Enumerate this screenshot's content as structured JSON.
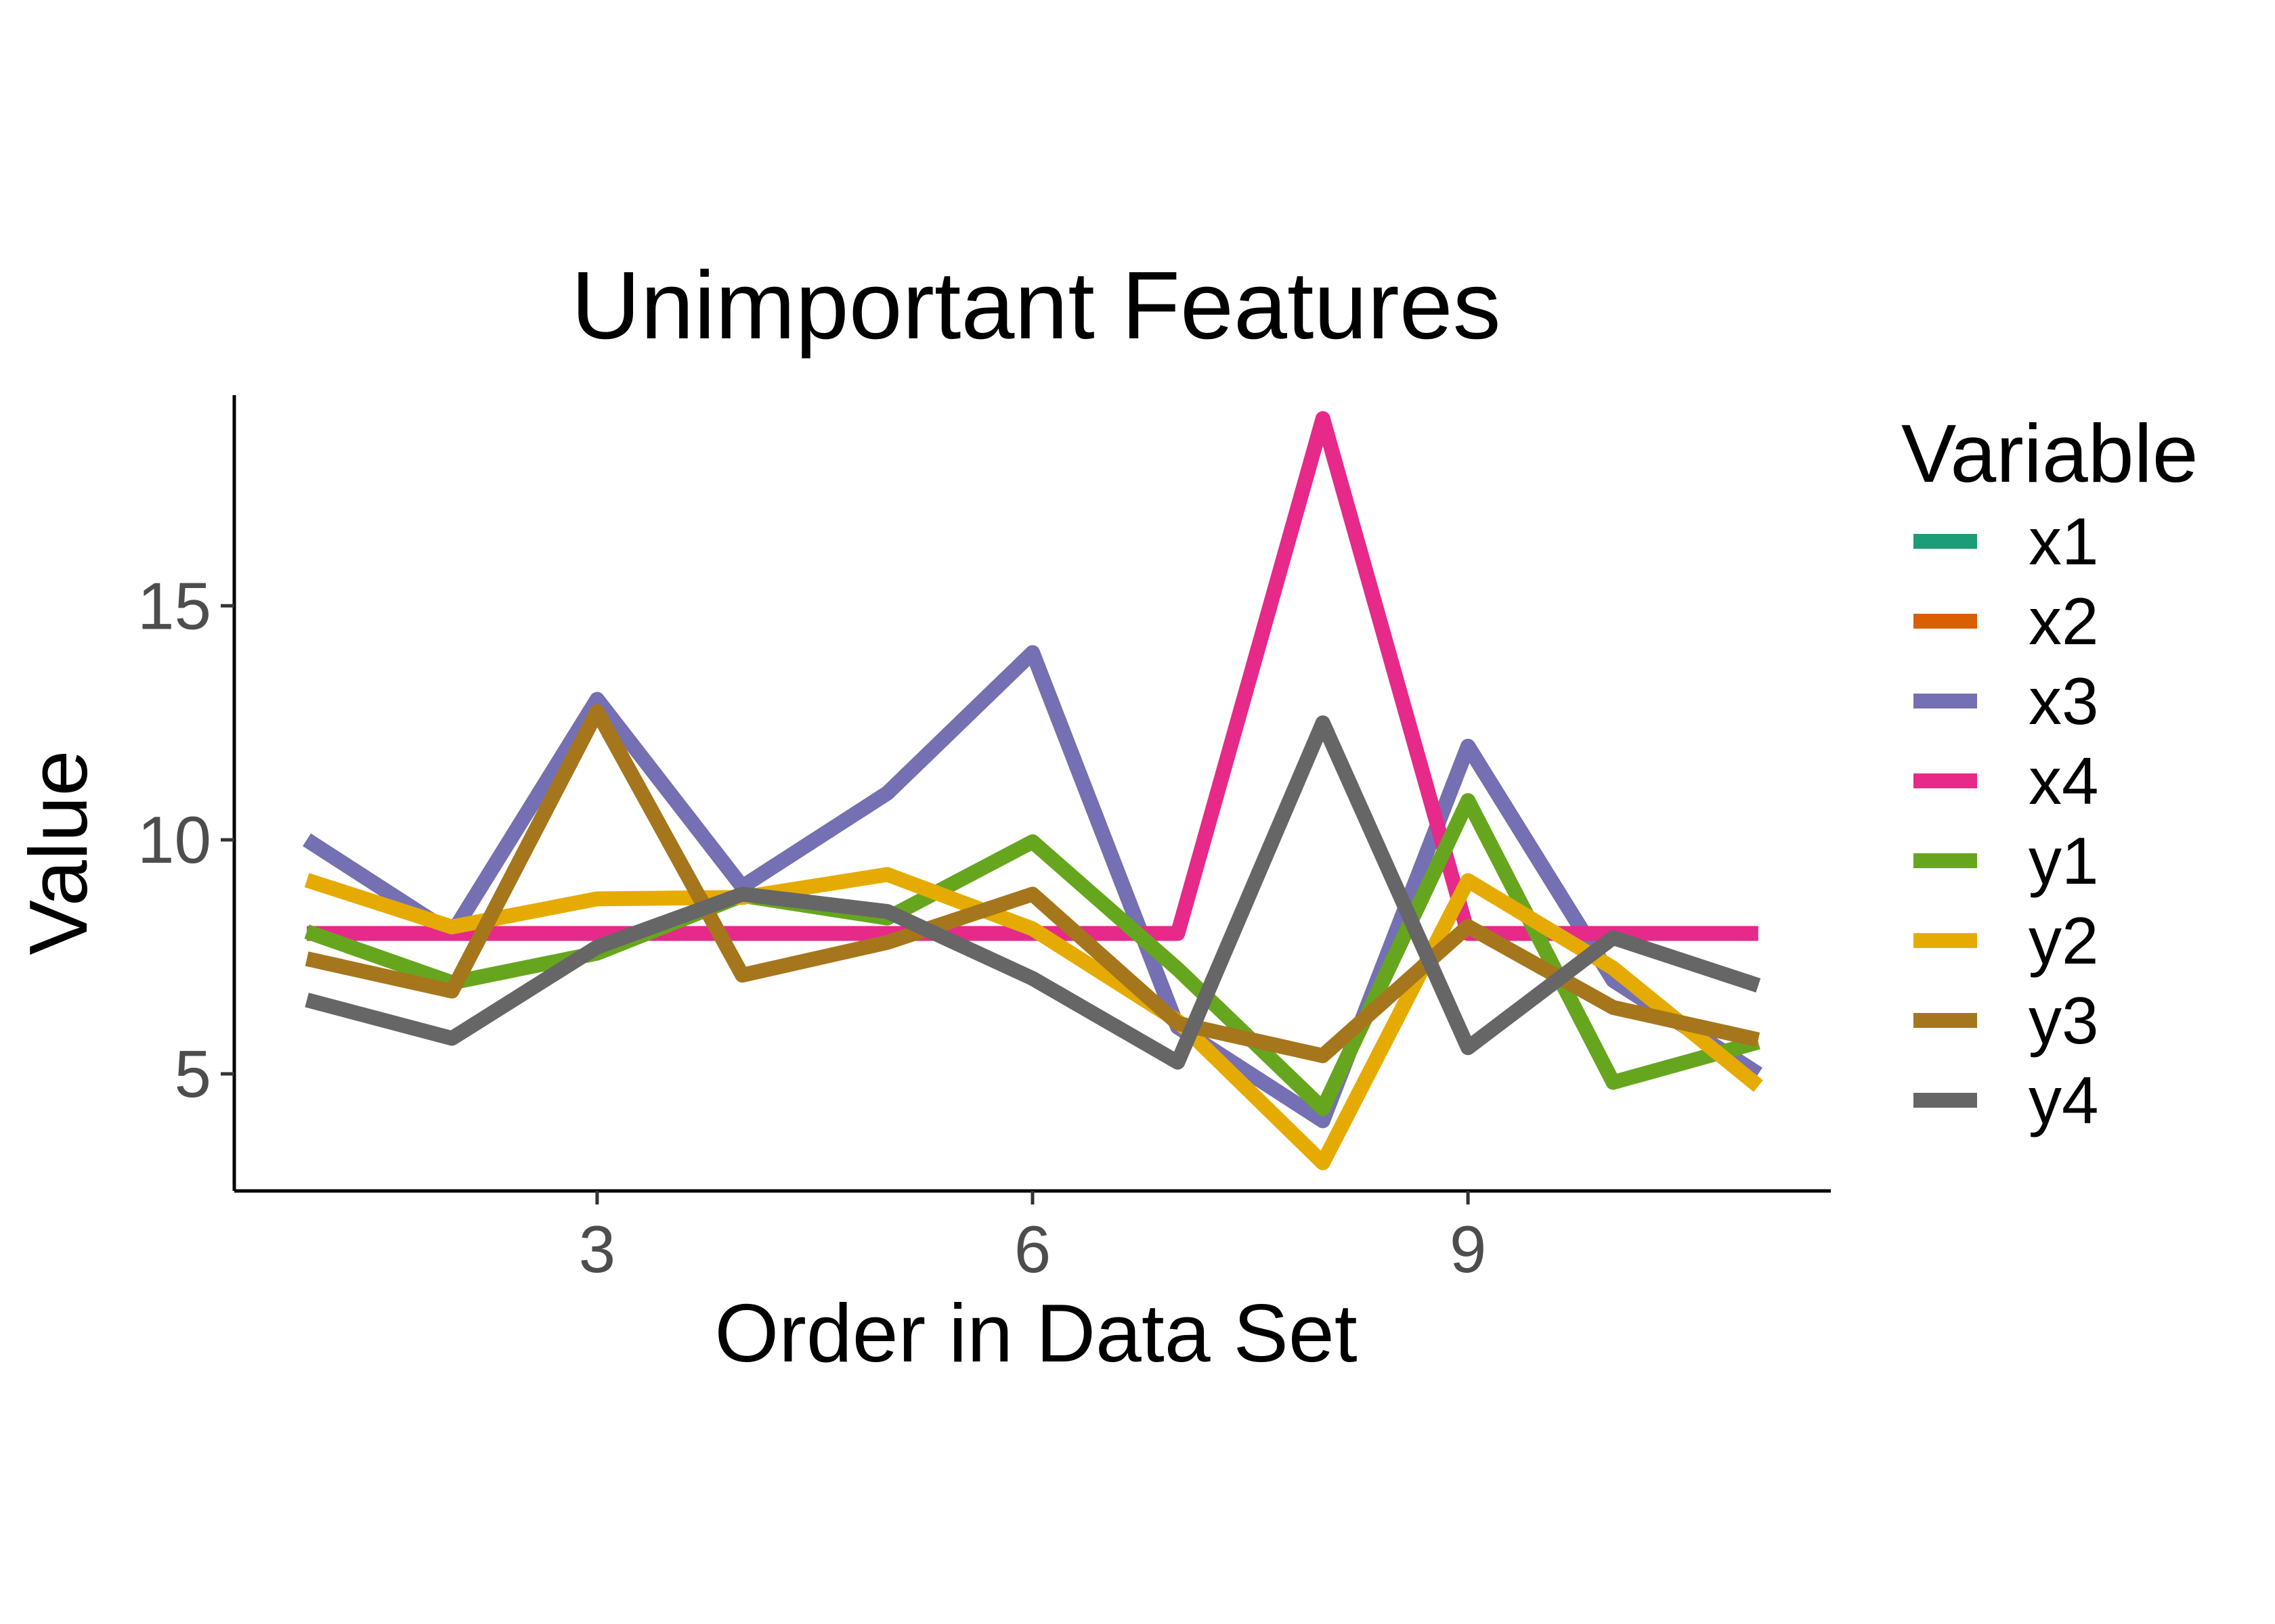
{
  "chart_data": {
    "type": "line",
    "title": "Unimportant Features",
    "xlabel": "Order in Data Set",
    "ylabel": "Value",
    "xlim": [
      0.5,
      11.5
    ],
    "ylim": [
      2.5,
      19.5
    ],
    "xticks": [
      3,
      6,
      9
    ],
    "yticks": [
      5,
      10,
      15
    ],
    "grid": false,
    "legend": {
      "title": "Variable",
      "position": "right"
    },
    "x": [
      1,
      2,
      3,
      4,
      5,
      6,
      7,
      8,
      9,
      10,
      11
    ],
    "series": [
      {
        "name": "x1",
        "color": "#1B9E77",
        "values": [
          10,
          8,
          13,
          9,
          11,
          14,
          6,
          4,
          12,
          7,
          5
        ]
      },
      {
        "name": "x2",
        "color": "#D95F02",
        "values": [
          10,
          8,
          13,
          9,
          11,
          14,
          6,
          4,
          12,
          7,
          5
        ]
      },
      {
        "name": "x3",
        "color": "#7570B3",
        "values": [
          10,
          8,
          13,
          9,
          11,
          14,
          6,
          4,
          12,
          7,
          5
        ]
      },
      {
        "name": "x4",
        "color": "#E7298A",
        "values": [
          8,
          8,
          8,
          8,
          8,
          8,
          8,
          19,
          8,
          8,
          8
        ]
      },
      {
        "name": "y1",
        "color": "#66A61E",
        "values": [
          8.04,
          6.95,
          7.58,
          8.81,
          8.33,
          9.96,
          7.24,
          4.26,
          10.84,
          4.82,
          5.68
        ]
      },
      {
        "name": "y2",
        "color": "#E6AB02",
        "values": [
          9.14,
          8.14,
          8.74,
          8.77,
          9.26,
          8.1,
          6.13,
          3.1,
          9.13,
          7.26,
          4.74
        ]
      },
      {
        "name": "y3",
        "color": "#A6761D",
        "values": [
          7.46,
          6.77,
          12.74,
          7.11,
          7.81,
          8.84,
          6.08,
          5.39,
          8.15,
          6.42,
          5.73
        ]
      },
      {
        "name": "y4",
        "color": "#666666",
        "values": [
          6.58,
          5.76,
          7.71,
          8.84,
          8.47,
          7.04,
          5.25,
          12.5,
          5.56,
          7.91,
          6.89
        ]
      }
    ]
  }
}
